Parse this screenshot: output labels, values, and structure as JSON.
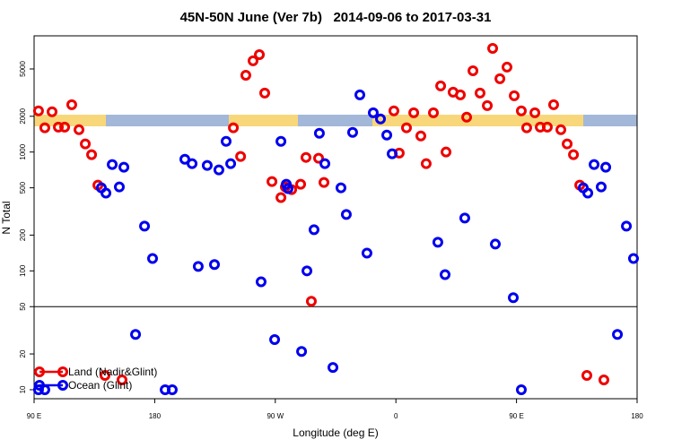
{
  "chart_data": {
    "type": "scatter",
    "title": "45N-50N June (Ver 7b)   2014-09-06 to 2017-03-31",
    "x_label": "Longitude (deg E)",
    "y_label": "N Total",
    "ylog": true,
    "xlim": [
      90,
      540
    ],
    "xticks": [
      {
        "value": 90,
        "label": "90 E"
      },
      180,
      {
        "value": 270,
        "label": "90 W"
      },
      {
        "value": 360,
        "label": "0"
      },
      {
        "value": 450,
        "label": "90 E"
      },
      {
        "value": 540,
        "label": "180"
      }
    ],
    "ylim": [
      8.4,
      9500
    ],
    "yticks": [
      10,
      20,
      50,
      100,
      200,
      500,
      1000,
      2000,
      5000
    ],
    "hlines": [
      50
    ],
    "legend": "lower left",
    "series": [
      {
        "name": "Land (Nadir&Glint)",
        "color": "#ee0000",
        "x": [
          93.3,
          98.0,
          103.4,
          108.1,
          112.8,
          118.1,
          123.5,
          128.2,
          132.9,
          137.6,
          142.9,
          155.6,
          238.7,
          244.1,
          248.0,
          253.4,
          258.1,
          262.1,
          267.5,
          274.2,
          277.5,
          282.2,
          288.9,
          292.9,
          296.9,
          302.3,
          306.3,
          362.5,
          358.5,
          367.9,
          373.3,
          378.6,
          382.6,
          388.0,
          393.4,
          397.4,
          402.7,
          408.1,
          412.8,
          417.5,
          422.8,
          428.2,
          432.2,
          437.6,
          442.9,
          448.3,
          453.6,
          457.6,
          463.7,
          467.7,
          473.0,
          477.7,
          483.1,
          487.8,
          492.5,
          497.2,
          502.5,
          515.2
        ],
        "values": [
          2220,
          1600,
          2180,
          1620,
          1620,
          2500,
          1540,
          1170,
          950,
          527,
          13.2,
          12.1,
          1600,
          917,
          4430,
          5850,
          6600,
          3135,
          565,
          414,
          509,
          483,
          536,
          901,
          55.5,
          886,
          555,
          980,
          2220,
          1600,
          2140,
          1366,
          798,
          2140,
          3600,
          1000,
          3190,
          3030,
          1965,
          4830,
          3135,
          2460,
          7450,
          4140,
          5180,
          2975,
          2220,
          1600,
          2140,
          1620,
          1620,
          2500,
          1540,
          1170,
          950,
          527,
          13.2,
          12.1
        ]
      },
      {
        "name": "Ocean (Glint)",
        "color": "#0000ee",
        "x": [
          93.3,
          98.0,
          140.2,
          143.6,
          148.3,
          153.6,
          157.0,
          165.7,
          172.4,
          178.4,
          187.8,
          193.1,
          202.5,
          207.9,
          212.5,
          219.2,
          224.6,
          227.9,
          233.3,
          236.7,
          259.4,
          269.5,
          274.2,
          278.2,
          279.5,
          289.6,
          293.6,
          298.9,
          302.9,
          307.0,
          313.0,
          319.0,
          323.0,
          327.7,
          333.1,
          338.4,
          343.1,
          348.5,
          353.2,
          357.2,
          391.3,
          396.7,
          411.4,
          434.2,
          447.6,
          453.6,
          499.8,
          503.2,
          507.9,
          513.2,
          516.6,
          525.3,
          532.0,
          537.3
        ],
        "values": [
          10,
          10,
          500,
          451,
          785,
          509,
          745,
          29.2,
          238,
          127,
          10,
          10,
          870,
          798,
          109,
          771,
          113,
          707,
          1231,
          798,
          81,
          26.4,
          1230,
          536,
          492,
          21,
          100,
          222,
          1438,
          798,
          15.4,
          500,
          298,
          1463,
          3030,
          141,
          2140,
          1897,
          1390,
          966,
          174,
          93,
          278,
          168,
          59.5,
          10,
          500,
          451,
          785,
          509,
          745,
          29.2,
          238,
          127
        ]
      }
    ]
  }
}
